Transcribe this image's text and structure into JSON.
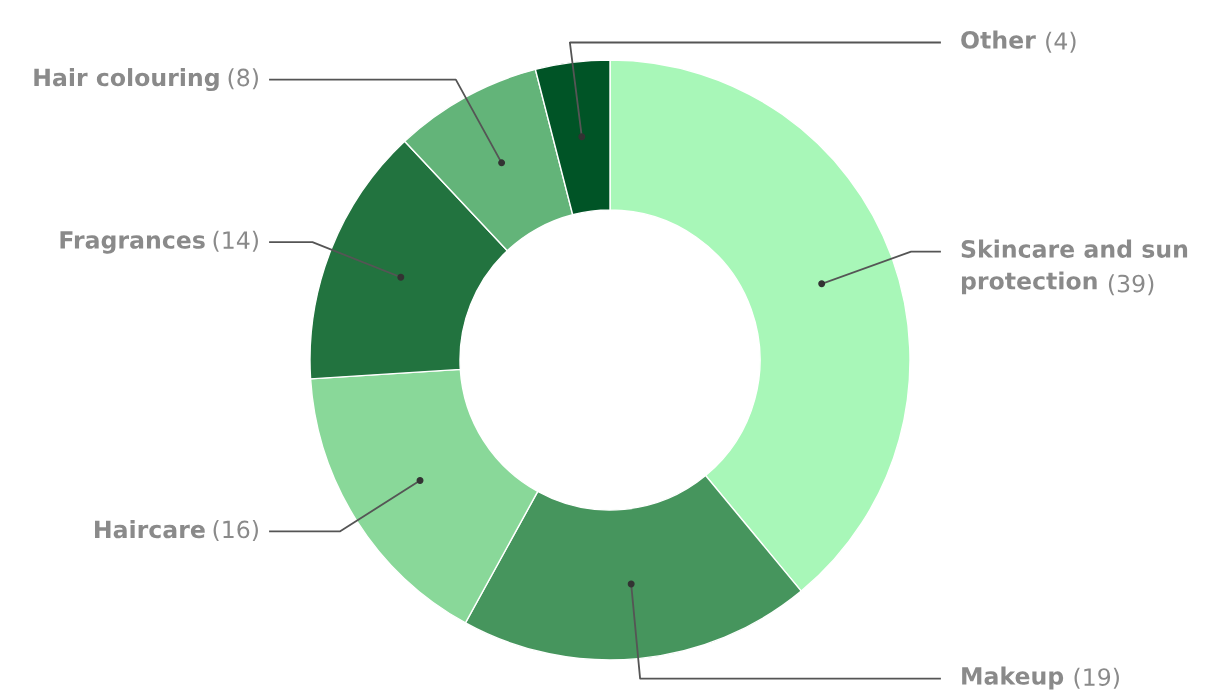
{
  "chart_data": {
    "type": "donut",
    "value_labels": [
      "(39)",
      "(19)",
      "(16)",
      "(14)",
      "(8)",
      "(4)"
    ],
    "categories": [
      "Skincare and sun protection",
      "Makeup",
      "Haircare",
      "Fragrances",
      "Hair colouring",
      "Other"
    ],
    "values": [
      39,
      19,
      16,
      14,
      8,
      4
    ],
    "colors": [
      "#a8f7b8",
      "#46955d",
      "#89d899",
      "#22733f",
      "#63b479",
      "#005426"
    ]
  }
}
